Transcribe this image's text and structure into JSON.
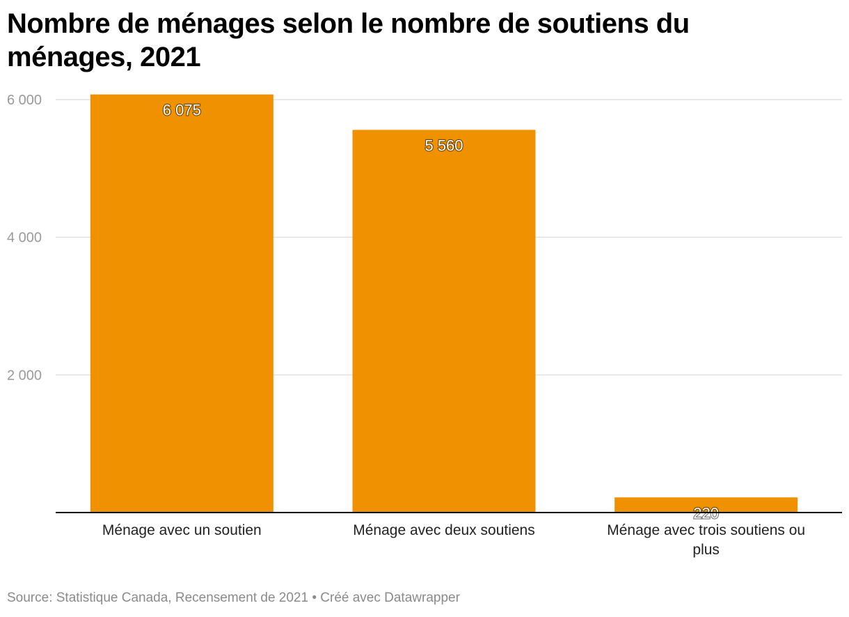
{
  "chart_data": {
    "type": "bar",
    "title": "Nombre de ménages selon le nombre de soutiens du ménages, 2021",
    "categories": [
      [
        "Ménage avec un soutien"
      ],
      [
        "Ménage avec deux soutiens"
      ],
      [
        "Ménage avec trois soutiens ou",
        "plus"
      ]
    ],
    "values": [
      6075,
      5560,
      220
    ],
    "value_labels": [
      "6 075",
      "5 560",
      "220"
    ],
    "yticks": [
      2000,
      4000,
      6000
    ],
    "ytick_labels": [
      "2 000",
      "4 000",
      "6 000"
    ],
    "ylim": [
      0,
      6000
    ],
    "xlabel": "",
    "ylabel": "",
    "grid": true,
    "bar_color": "#ef9100",
    "gridline_color": "#e0e0e0",
    "axis_color": "#000000",
    "tick_label_color": "#9a9a9a"
  },
  "footer": {
    "source": "Source: Statistique Canada, Recensement de 2021 • Créé avec Datawrapper"
  }
}
